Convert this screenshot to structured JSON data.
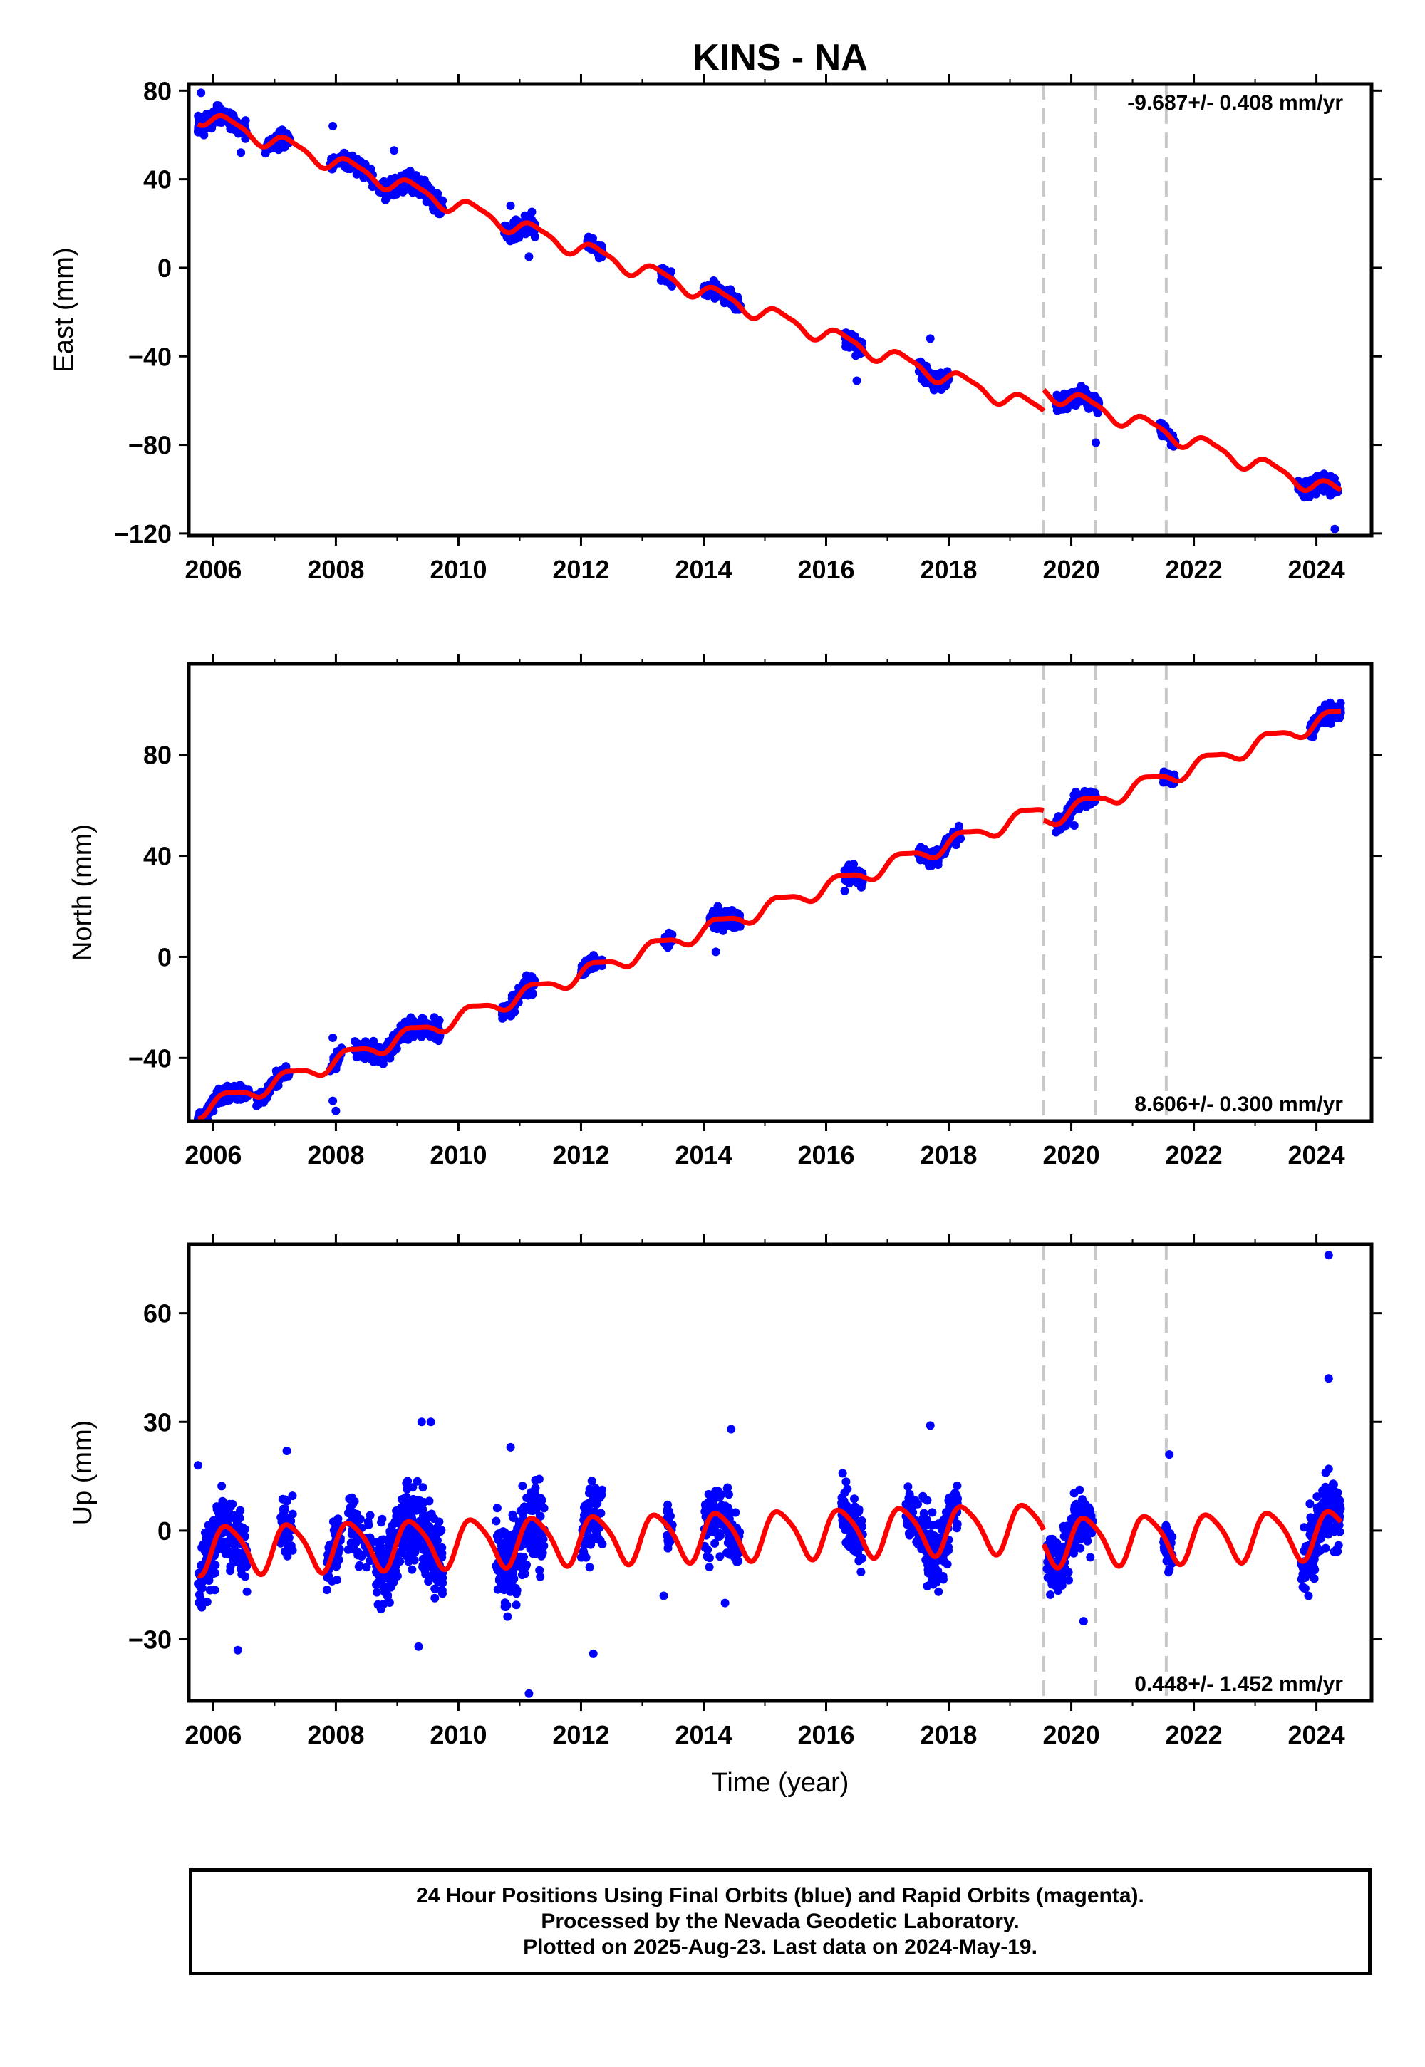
{
  "title": "KINS - NA",
  "xlabel": "Time (year)",
  "footer": {
    "line1": "24 Hour Positions Using Final Orbits (blue) and Rapid Orbits (magenta).",
    "line2": "Processed by the Nevada Geodetic Laboratory.",
    "line3": "Plotted on 2025-Aug-23. Last data on 2024-May-19."
  },
  "colors": {
    "points": "#0000ff",
    "model": "#ff0000",
    "steps": "#c8c8c8",
    "frame": "#000000"
  },
  "chart_data": [
    {
      "type": "scatter",
      "id": "east",
      "ylabel": "East (mm)",
      "rate_text": "-9.687+/- 0.408 mm/yr",
      "rate_position": "top-right",
      "xlim": [
        2005.6,
        2024.9
      ],
      "ylim": [
        -121,
        83
      ],
      "xticks": [
        "2006",
        "2008",
        "2010",
        "2012",
        "2014",
        "2016",
        "2018",
        "2020",
        "2022",
        "2024"
      ],
      "yticks": [
        "80",
        "40",
        "0",
        "−40",
        "−80",
        "−120"
      ],
      "ytick_values": [
        80,
        40,
        0,
        -40,
        -80,
        -120
      ],
      "step_lines": [
        2019.55,
        2020.4,
        2021.55
      ],
      "model": {
        "rate": -9.687,
        "ref_year": 2015.0,
        "ref_value": -20.5,
        "annual_amp": 3.5,
        "semiannual_amp": 1.0,
        "offset_2019_55": 9.5,
        "offset_2020_4": 0.0,
        "offset_2021_55": 0.0
      },
      "segments": [
        {
          "start": 2005.75,
          "end": 2006.55,
          "n": 160,
          "scatter": 3.0,
          "outliers": [
            [
              2005.8,
              79
            ],
            [
              2006.45,
              52
            ]
          ]
        },
        {
          "start": 2006.85,
          "end": 2007.25,
          "n": 60,
          "scatter": 2.5,
          "outliers": []
        },
        {
          "start": 2007.9,
          "end": 2008.0,
          "n": 12,
          "scatter": 3.0,
          "outliers": [
            [
              2007.95,
              64
            ]
          ]
        },
        {
          "start": 2008.05,
          "end": 2008.6,
          "n": 80,
          "scatter": 3.0,
          "outliers": []
        },
        {
          "start": 2008.7,
          "end": 2009.75,
          "n": 260,
          "scatter": 3.0,
          "outliers": [
            [
              2008.95,
              53
            ]
          ]
        },
        {
          "start": 2010.75,
          "end": 2011.25,
          "n": 110,
          "scatter": 3.0,
          "outliers": [
            [
              2010.85,
              28
            ],
            [
              2011.15,
              5
            ]
          ]
        },
        {
          "start": 2012.1,
          "end": 2012.35,
          "n": 55,
          "scatter": 2.5,
          "outliers": []
        },
        {
          "start": 2013.3,
          "end": 2013.5,
          "n": 40,
          "scatter": 2.5,
          "outliers": []
        },
        {
          "start": 2014.0,
          "end": 2014.6,
          "n": 110,
          "scatter": 2.5,
          "outliers": []
        },
        {
          "start": 2016.3,
          "end": 2016.6,
          "n": 70,
          "scatter": 2.5,
          "outliers": [
            [
              2016.5,
              -51
            ]
          ]
        },
        {
          "start": 2017.5,
          "end": 2018.0,
          "n": 130,
          "scatter": 2.5,
          "outliers": [
            [
              2017.7,
              -32
            ]
          ]
        },
        {
          "start": 2019.75,
          "end": 2020.45,
          "n": 180,
          "scatter": 2.5,
          "outliers": [
            [
              2020.4,
              -79
            ]
          ]
        },
        {
          "start": 2021.45,
          "end": 2021.7,
          "n": 50,
          "scatter": 2.0,
          "outliers": []
        },
        {
          "start": 2023.7,
          "end": 2024.35,
          "n": 120,
          "scatter": 3.0,
          "outliers": [
            [
              2024.3,
              -118
            ]
          ]
        }
      ]
    },
    {
      "type": "scatter",
      "id": "north",
      "ylabel": "North (mm)",
      "rate_text": "8.606+/- 0.300 mm/yr",
      "rate_position": "bottom-right",
      "xlim": [
        2005.6,
        2024.9
      ],
      "ylim": [
        -65,
        116
      ],
      "xticks": [
        "2006",
        "2008",
        "2010",
        "2012",
        "2014",
        "2016",
        "2018",
        "2020",
        "2022",
        "2024"
      ],
      "yticks": [
        "80",
        "40",
        "0",
        "−40"
      ],
      "ytick_values": [
        80,
        40,
        0,
        -40
      ],
      "step_lines": [
        2019.55,
        2020.4,
        2021.55
      ],
      "model": {
        "rate": 8.606,
        "ref_year": 2015.0,
        "ref_value": 19.0,
        "annual_amp": 3.0,
        "semiannual_amp": 0.8,
        "offset_2019_55": -4.0,
        "offset_2020_4": 0.0,
        "offset_2021_55": 0.0
      },
      "segments": [
        {
          "start": 2005.75,
          "end": 2006.6,
          "n": 150,
          "scatter": 2.0,
          "outliers": [
            [
              2006.0,
              -61
            ]
          ]
        },
        {
          "start": 2006.7,
          "end": 2007.25,
          "n": 70,
          "scatter": 2.0,
          "outliers": []
        },
        {
          "start": 2007.9,
          "end": 2008.1,
          "n": 25,
          "scatter": 2.5,
          "outliers": [
            [
              2007.95,
              -57
            ],
            [
              2008.0,
              -61
            ],
            [
              2007.95,
              -32
            ]
          ]
        },
        {
          "start": 2008.3,
          "end": 2009.7,
          "n": 300,
          "scatter": 2.5,
          "outliers": []
        },
        {
          "start": 2010.7,
          "end": 2011.25,
          "n": 110,
          "scatter": 2.5,
          "outliers": []
        },
        {
          "start": 2012.0,
          "end": 2012.35,
          "n": 55,
          "scatter": 2.0,
          "outliers": []
        },
        {
          "start": 2013.35,
          "end": 2013.5,
          "n": 30,
          "scatter": 2.0,
          "outliers": []
        },
        {
          "start": 2014.1,
          "end": 2014.6,
          "n": 100,
          "scatter": 2.5,
          "outliers": [
            [
              2014.2,
              2
            ]
          ]
        },
        {
          "start": 2016.3,
          "end": 2016.6,
          "n": 80,
          "scatter": 3.0,
          "outliers": []
        },
        {
          "start": 2017.5,
          "end": 2018.2,
          "n": 140,
          "scatter": 2.0,
          "outliers": []
        },
        {
          "start": 2019.75,
          "end": 2020.4,
          "n": 170,
          "scatter": 2.0,
          "outliers": [
            [
              2020.05,
              52
            ]
          ]
        },
        {
          "start": 2021.5,
          "end": 2021.7,
          "n": 40,
          "scatter": 1.5,
          "outliers": []
        },
        {
          "start": 2023.9,
          "end": 2024.4,
          "n": 110,
          "scatter": 2.5,
          "outliers": [
            [
              2024.2,
              93
            ]
          ]
        }
      ]
    },
    {
      "type": "scatter",
      "id": "up",
      "ylabel": "Up (mm)",
      "rate_text": "0.448+/- 1.452 mm/yr",
      "rate_position": "bottom-right",
      "xlim": [
        2005.6,
        2024.9
      ],
      "ylim": [
        -47,
        79
      ],
      "xticks": [
        "2006",
        "2008",
        "2010",
        "2012",
        "2014",
        "2016",
        "2018",
        "2020",
        "2022",
        "2024"
      ],
      "yticks": [
        "60",
        "30",
        "0",
        "−30"
      ],
      "ytick_values": [
        60,
        30,
        0,
        -30
      ],
      "step_lines": [
        2019.55,
        2020.4,
        2021.55
      ],
      "model": {
        "rate": 0.448,
        "ref_year": 2015.0,
        "ref_value": -1.0,
        "annual_amp": 6.5,
        "semiannual_amp": 1.2,
        "offset_2019_55": -4.0,
        "offset_2020_4": 0.0,
        "offset_2021_55": 0.0
      },
      "segments": [
        {
          "start": 2005.75,
          "end": 2006.55,
          "n": 200,
          "scatter": 7.0,
          "outliers": [
            [
              2006.4,
              -33
            ],
            [
              2005.75,
              18
            ]
          ]
        },
        {
          "start": 2007.1,
          "end": 2007.3,
          "n": 40,
          "scatter": 5.0,
          "outliers": [
            [
              2007.2,
              22
            ]
          ]
        },
        {
          "start": 2007.85,
          "end": 2008.1,
          "n": 50,
          "scatter": 6.0,
          "outliers": []
        },
        {
          "start": 2008.2,
          "end": 2008.6,
          "n": 60,
          "scatter": 6.0,
          "outliers": []
        },
        {
          "start": 2008.65,
          "end": 2009.75,
          "n": 330,
          "scatter": 7.0,
          "outliers": [
            [
              2009.4,
              30
            ],
            [
              2009.55,
              30
            ],
            [
              2009.35,
              -32
            ]
          ]
        },
        {
          "start": 2010.6,
          "end": 2011.4,
          "n": 200,
          "scatter": 9.0,
          "outliers": [
            [
              2011.15,
              -45
            ],
            [
              2010.85,
              23
            ]
          ]
        },
        {
          "start": 2012.0,
          "end": 2012.35,
          "n": 70,
          "scatter": 7.0,
          "outliers": [
            [
              2012.2,
              -34
            ]
          ]
        },
        {
          "start": 2013.4,
          "end": 2013.5,
          "n": 25,
          "scatter": 5.0,
          "outliers": [
            [
              2013.35,
              -18
            ]
          ]
        },
        {
          "start": 2014.0,
          "end": 2014.6,
          "n": 140,
          "scatter": 6.0,
          "outliers": [
            [
              2014.45,
              28
            ],
            [
              2014.35,
              -20
            ]
          ]
        },
        {
          "start": 2016.25,
          "end": 2016.6,
          "n": 90,
          "scatter": 6.0,
          "outliers": []
        },
        {
          "start": 2017.3,
          "end": 2018.15,
          "n": 180,
          "scatter": 6.0,
          "outliers": [
            [
              2017.7,
              29
            ]
          ]
        },
        {
          "start": 2019.6,
          "end": 2020.35,
          "n": 170,
          "scatter": 6.0,
          "outliers": [
            [
              2020.2,
              -25
            ]
          ]
        },
        {
          "start": 2021.5,
          "end": 2021.65,
          "n": 50,
          "scatter": 5.0,
          "outliers": [
            [
              2021.6,
              21
            ]
          ]
        },
        {
          "start": 2023.75,
          "end": 2024.4,
          "n": 160,
          "scatter": 7.0,
          "outliers": [
            [
              2024.2,
              76
            ],
            [
              2024.2,
              42
            ],
            [
              2024.2,
              17
            ]
          ]
        }
      ]
    }
  ]
}
